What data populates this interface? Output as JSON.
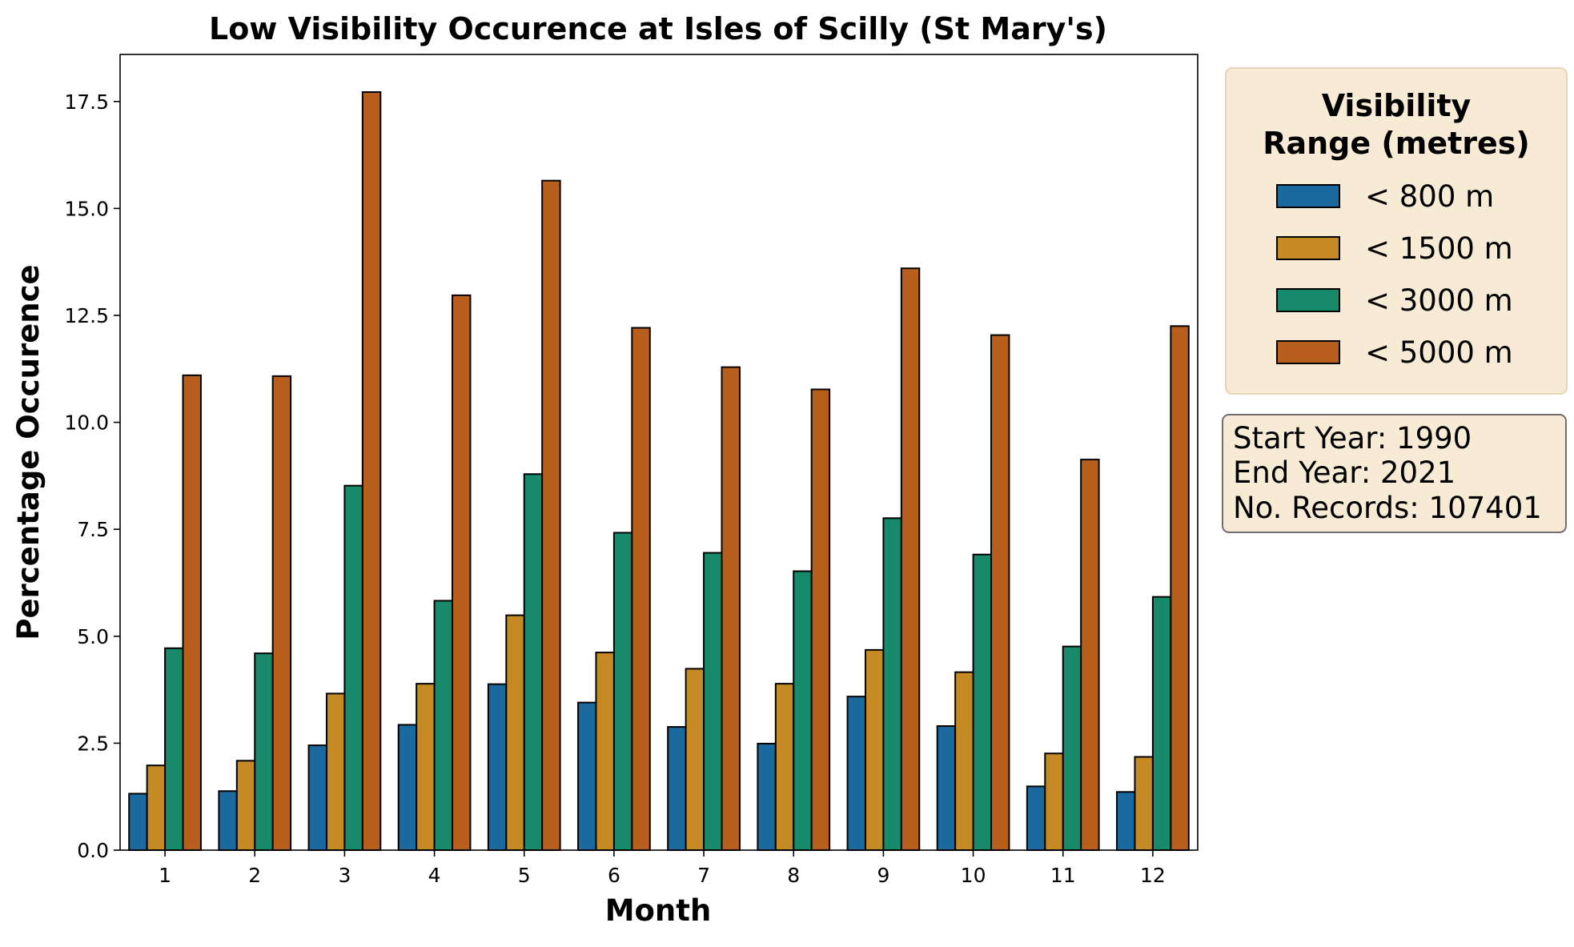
{
  "chart_data": {
    "type": "bar",
    "title": "Low Visibility Occurence at Isles of Scilly (St Mary's)",
    "xlabel": "Month",
    "ylabel": "Percentage Occurence",
    "ylim": [
      0,
      18.6
    ],
    "yticks": [
      "0.0",
      "2.5",
      "5.0",
      "7.5",
      "10.0",
      "12.5",
      "15.0",
      "17.5"
    ],
    "ytick_values": [
      0,
      2.5,
      5,
      7.5,
      10,
      12.5,
      15,
      17.5
    ],
    "categories": [
      "1",
      "2",
      "3",
      "4",
      "5",
      "6",
      "7",
      "8",
      "9",
      "10",
      "11",
      "12"
    ],
    "legend_title_lines": [
      "Visibility",
      "Range (metres)"
    ],
    "legend_position": "outside right, top",
    "series": [
      {
        "name": "< 800 m",
        "color": "#1a6aa0",
        "values": [
          1.32,
          1.38,
          2.45,
          2.93,
          3.88,
          3.45,
          2.88,
          2.49,
          3.59,
          2.9,
          1.49,
          1.36
        ]
      },
      {
        "name": "< 1500 m",
        "color": "#c68a25",
        "values": [
          1.98,
          2.09,
          3.66,
          3.89,
          5.49,
          4.62,
          4.24,
          3.89,
          4.68,
          4.16,
          2.26,
          2.18
        ]
      },
      {
        "name": "< 3000 m",
        "color": "#178a6b",
        "values": [
          4.72,
          4.6,
          8.52,
          5.83,
          8.79,
          7.42,
          6.95,
          6.52,
          7.76,
          6.91,
          4.76,
          5.92
        ]
      },
      {
        "name": "< 5000 m",
        "color": "#b95f1d",
        "values": [
          11.1,
          11.08,
          17.72,
          12.97,
          15.65,
          12.21,
          11.29,
          10.77,
          13.6,
          12.04,
          9.13,
          12.25
        ]
      }
    ]
  },
  "info_box": {
    "lines": [
      "Start Year: 1990",
      "End Year: 2021",
      "No. Records: 107401"
    ]
  },
  "colors": {
    "legend_background": "#f7ebd5",
    "legend_border": "#e6d6b8",
    "info_background": "#f7ebd5",
    "info_border": "#6e6e6e",
    "bar_edge": "#000000"
  }
}
